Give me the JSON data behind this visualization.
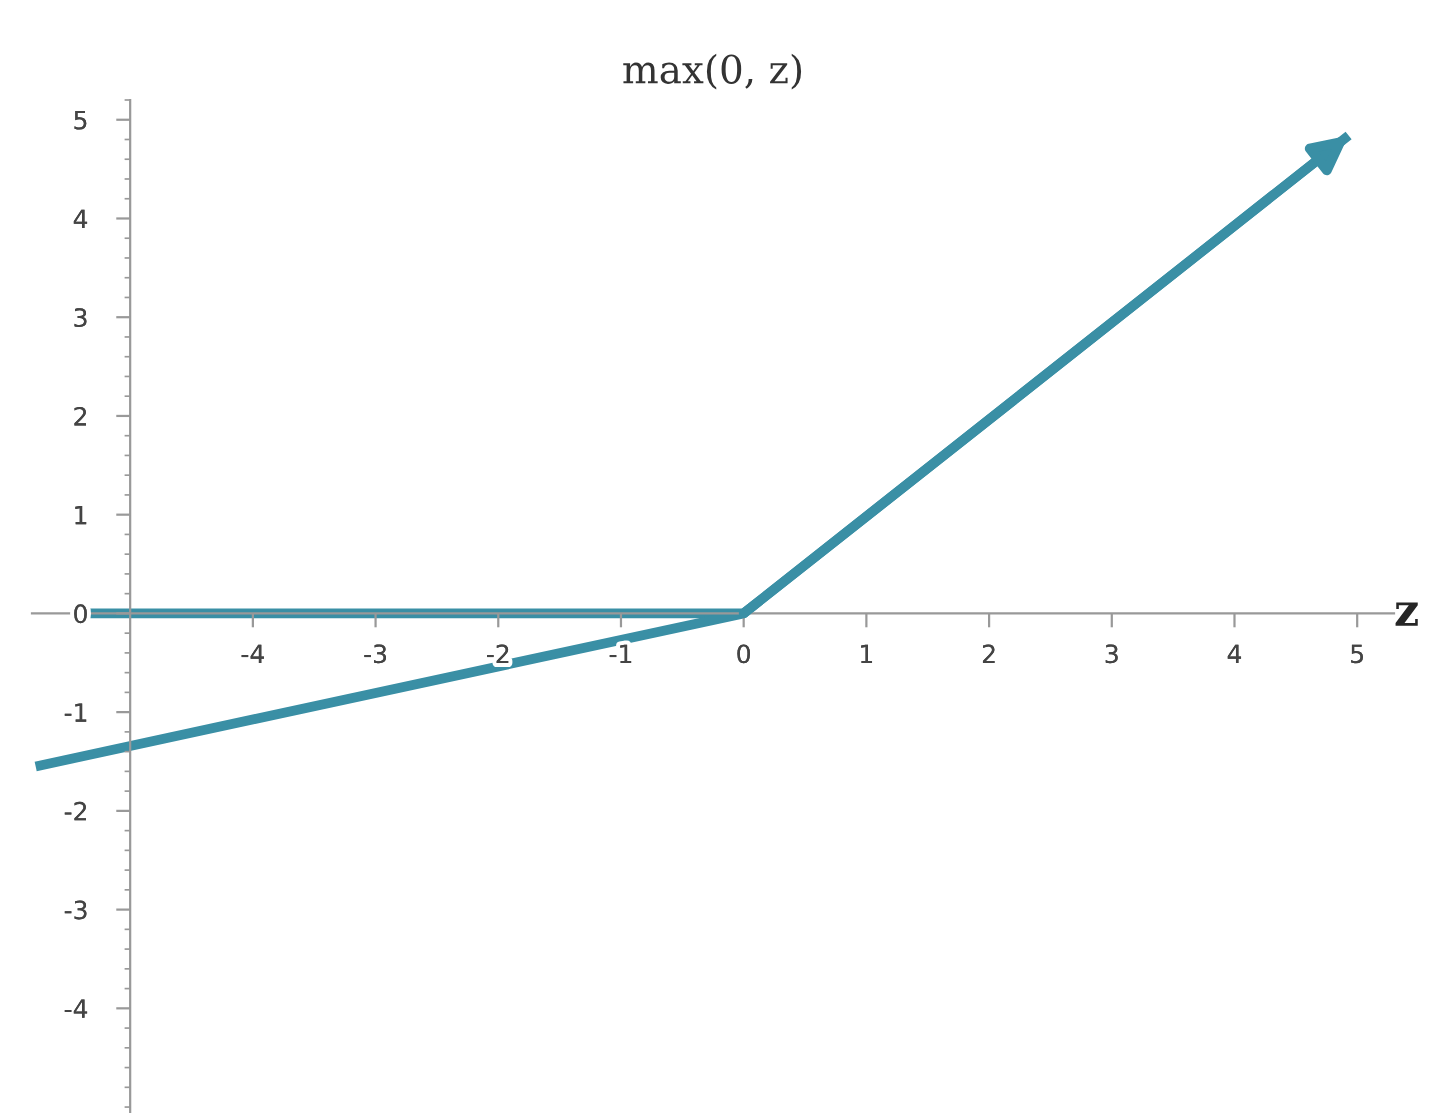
{
  "chart_data": {
    "type": "line",
    "title": "max(0, z)",
    "xlabel": "z",
    "series": [
      {
        "color": "#3a8fa5",
        "x": [
          -5.33,
          0,
          4.93
        ],
        "values": [
          0,
          0,
          4.84
        ]
      },
      {
        "color": "#3a8fa5",
        "x": [
          -5.77,
          0
        ],
        "values": [
          -1.55,
          0
        ]
      }
    ],
    "xlim": [
      -5.8,
      5.3
    ],
    "ylim": [
      -5.05,
      5.2
    ],
    "xticks": [
      -4,
      -3,
      -2,
      -1,
      0,
      1,
      2,
      3,
      4,
      5
    ],
    "yticks": [
      -4,
      -3,
      -2,
      -1,
      0,
      1,
      2,
      3,
      4,
      5
    ],
    "grid": false,
    "marker": "none",
    "line_style": "solid"
  }
}
